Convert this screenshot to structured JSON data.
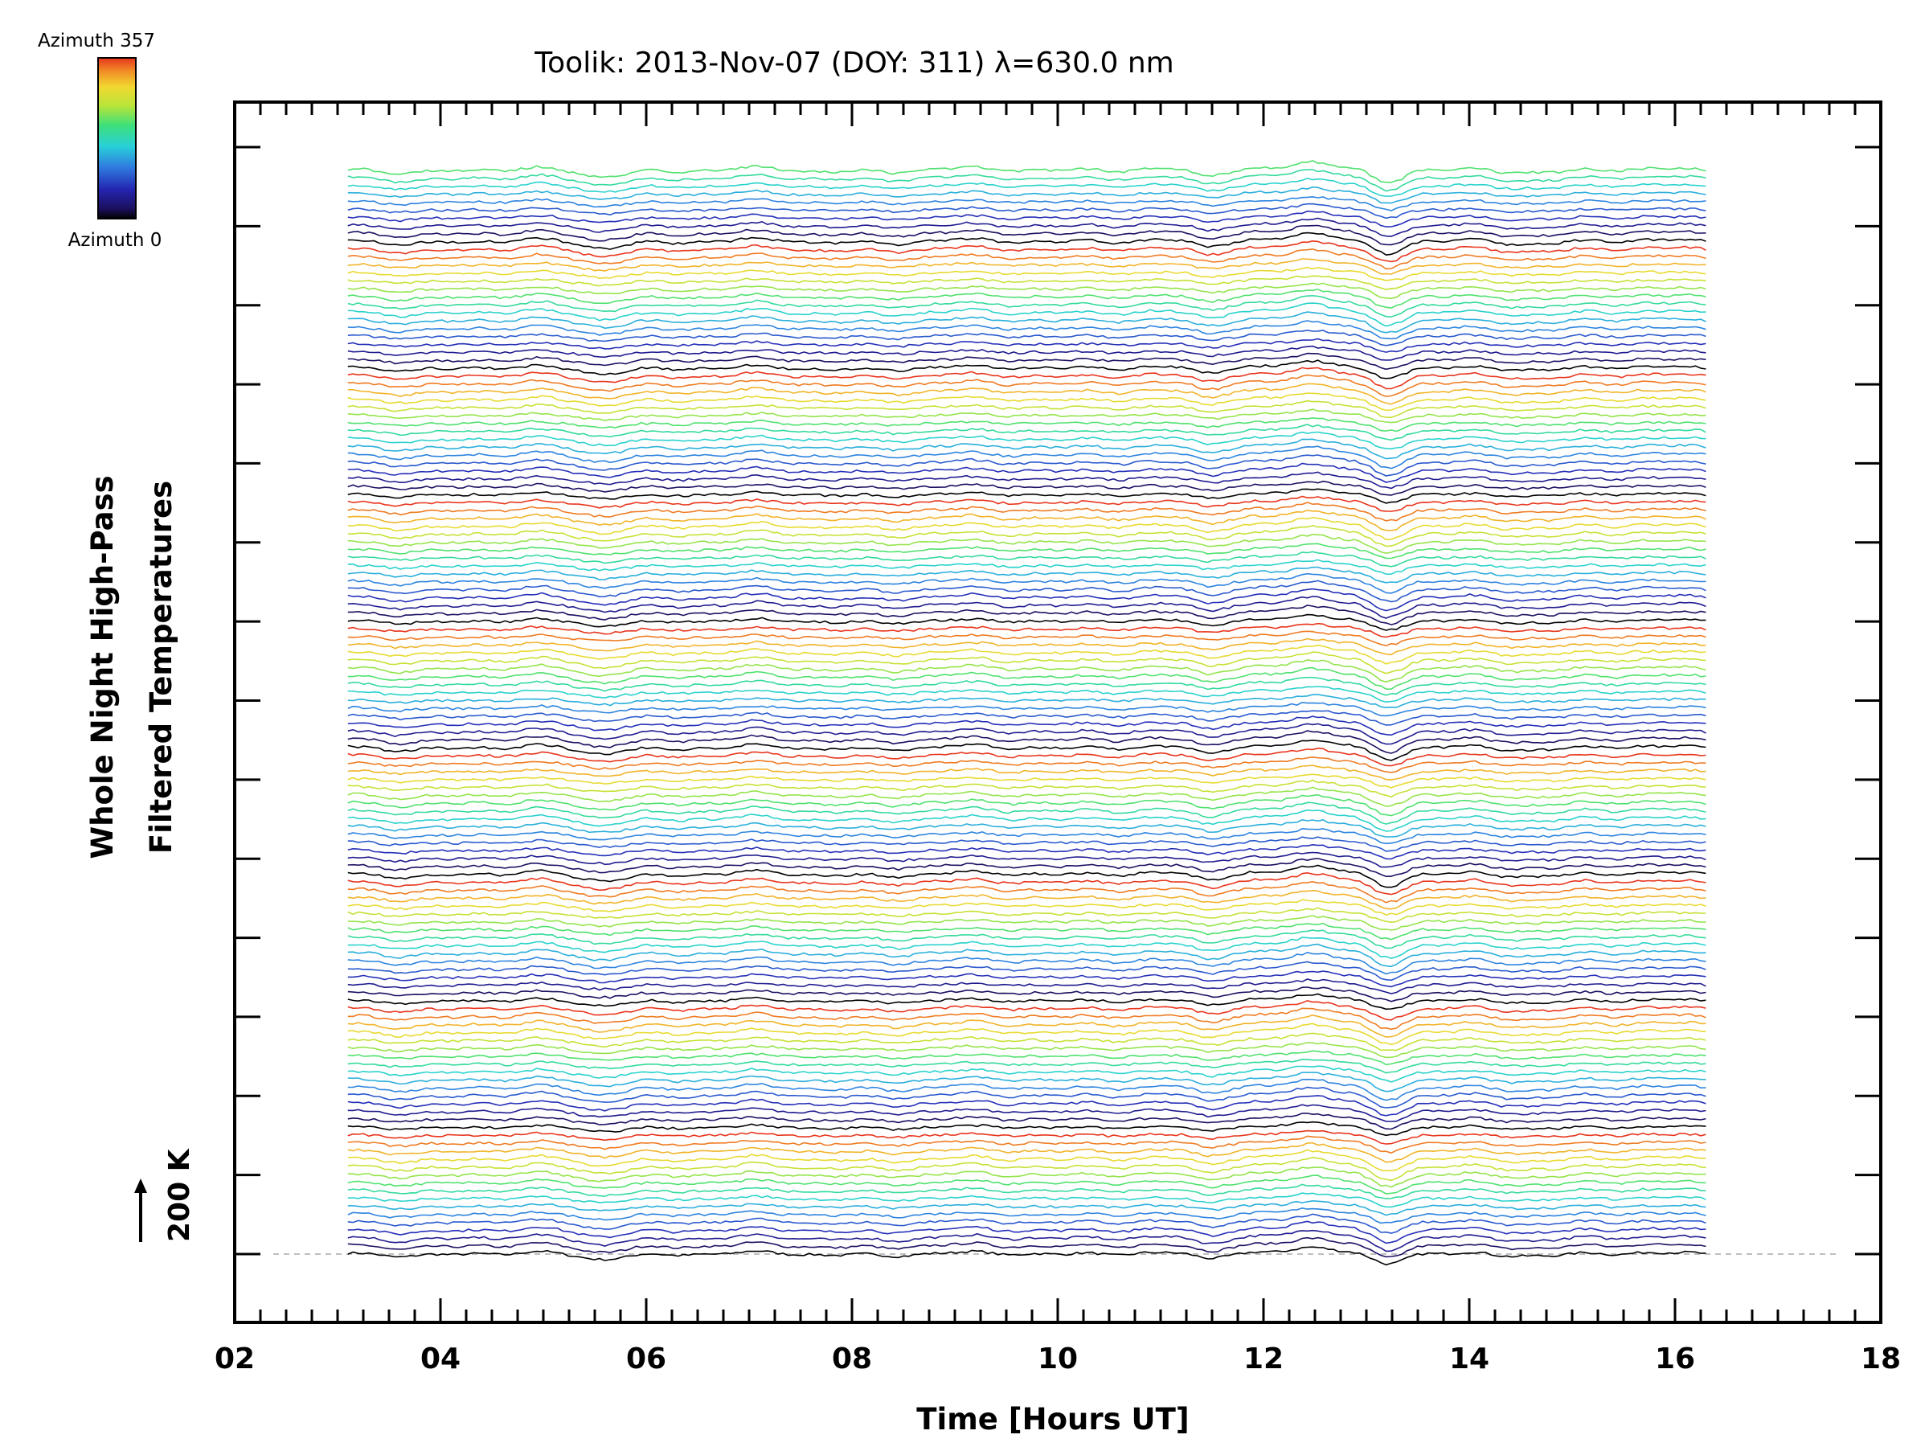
{
  "chart_data": {
    "type": "line",
    "title": "Toolik: 2013-Nov-07 (DOY: 311) λ=630.0 nm",
    "xlabel": "Time [Hours UT]",
    "ylabel_line1": "Whole Night High-Pass",
    "ylabel_line2": "Filtered Temperatures",
    "xlim": [
      2,
      18
    ],
    "x_ticks": [
      "02",
      "04",
      "06",
      "08",
      "10",
      "12",
      "14",
      "16",
      "18"
    ],
    "x_tick_values": [
      2,
      4,
      6,
      8,
      10,
      12,
      14,
      16,
      18
    ],
    "x_range_of_data": [
      3.1,
      16.3
    ],
    "scale_bar_label": "200 K",
    "colorbar": {
      "top_label": "Azimuth 357",
      "bottom_label": "Azimuth 0"
    },
    "series_count": 138,
    "series_block_size": 16,
    "baseline_dashed": true
  },
  "colors": {
    "frame": "#000000",
    "baseline": "#aaaaaa"
  }
}
